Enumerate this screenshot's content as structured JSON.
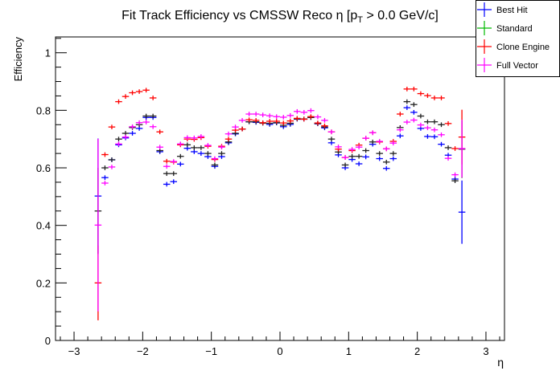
{
  "chart_data": {
    "type": "scatter",
    "title_main": "Fit Track Efficiency vs CMSSW Reco η [p",
    "title_sub": "T",
    "title_rest": " > 0.0 GeV/c]",
    "xlabel": "η",
    "ylabel": "Efficiency",
    "xlim": [
      -3.27,
      3.27
    ],
    "ylim": [
      0,
      1.055
    ],
    "x_ticks": [
      -3,
      -2,
      -1,
      0,
      1,
      2,
      3
    ],
    "x_tick_labels": [
      "−3",
      "−2",
      "−1",
      "0",
      "1",
      "2",
      "3"
    ],
    "y_ticks": [
      0,
      0.2,
      0.4,
      0.6,
      0.8,
      1
    ],
    "y_tick_labels": [
      "0",
      "0.2",
      "0.4",
      "0.6",
      "0.8",
      "1"
    ],
    "bin_width": 0.1,
    "x_first_bin_center": -2.65,
    "legend_placement": "top-right",
    "series": [
      {
        "name": "Best Hit",
        "legend_color": "#0000ff",
        "color": "#0000ff",
        "edge_errors": [
          0.2,
          0.11
        ],
        "values": [
          0.502,
          0.566,
          0.628,
          0.68,
          0.704,
          0.72,
          0.737,
          0.775,
          0.775,
          0.656,
          0.543,
          0.552,
          0.613,
          0.668,
          0.656,
          0.65,
          0.639,
          0.605,
          0.639,
          0.687,
          0.718,
          0.735,
          0.76,
          0.758,
          0.756,
          0.751,
          0.756,
          0.743,
          0.751,
          0.769,
          0.769,
          0.775,
          0.753,
          0.739,
          0.687,
          0.645,
          0.6,
          0.629,
          0.614,
          0.638,
          0.682,
          0.632,
          0.598,
          0.632,
          0.711,
          0.809,
          0.793,
          0.737,
          0.709,
          0.708,
          0.682,
          0.644,
          0.561,
          0.446
        ]
      },
      {
        "name": "Standard",
        "legend_color": "#00bb00",
        "color": "#222222",
        "edge_errors": [
          0.15,
          0.1
        ],
        "values": [
          0.45,
          0.6,
          0.628,
          0.7,
          0.72,
          0.74,
          0.75,
          0.78,
          0.78,
          0.66,
          0.58,
          0.58,
          0.64,
          0.68,
          0.67,
          0.67,
          0.65,
          0.61,
          0.65,
          0.69,
          0.72,
          0.735,
          0.76,
          0.76,
          0.755,
          0.755,
          0.757,
          0.748,
          0.755,
          0.77,
          0.77,
          0.775,
          0.754,
          0.742,
          0.7,
          0.655,
          0.61,
          0.64,
          0.64,
          0.66,
          0.69,
          0.65,
          0.62,
          0.65,
          0.74,
          0.83,
          0.82,
          0.78,
          0.76,
          0.76,
          0.75,
          0.67,
          0.555,
          0.665
        ]
      },
      {
        "name": "Clone Engine",
        "legend_color": "#ff0000",
        "color": "#ff0000",
        "edge_errors": [
          0.13,
          0.095
        ],
        "values": [
          0.2,
          0.646,
          0.742,
          0.83,
          0.848,
          0.861,
          0.865,
          0.87,
          0.843,
          0.725,
          0.623,
          0.62,
          0.68,
          0.7,
          0.699,
          0.705,
          0.675,
          0.629,
          0.675,
          0.7,
          0.731,
          0.735,
          0.767,
          0.765,
          0.757,
          0.762,
          0.762,
          0.756,
          0.763,
          0.772,
          0.769,
          0.778,
          0.756,
          0.746,
          0.725,
          0.665,
          0.636,
          0.66,
          0.679,
          0.703,
          0.722,
          0.69,
          0.666,
          0.692,
          0.787,
          0.874,
          0.874,
          0.858,
          0.851,
          0.843,
          0.843,
          0.754,
          0.667,
          0.707
        ]
      },
      {
        "name": "Full Vector",
        "legend_color": "#ff00ff",
        "color": "#ff00ff",
        "edge_errors": [
          0.3,
          0.1
        ],
        "values": [
          0.401,
          0.547,
          0.603,
          0.683,
          0.707,
          0.743,
          0.757,
          0.759,
          0.743,
          0.672,
          0.605,
          0.622,
          0.683,
          0.705,
          0.704,
          0.709,
          0.678,
          0.632,
          0.672,
          0.718,
          0.742,
          0.765,
          0.787,
          0.787,
          0.784,
          0.781,
          0.778,
          0.776,
          0.782,
          0.796,
          0.793,
          0.799,
          0.777,
          0.765,
          0.725,
          0.673,
          0.636,
          0.664,
          0.672,
          0.703,
          0.722,
          0.692,
          0.666,
          0.686,
          0.732,
          0.759,
          0.766,
          0.749,
          0.739,
          0.732,
          0.715,
          0.633,
          0.576,
          0.667
        ]
      }
    ]
  }
}
